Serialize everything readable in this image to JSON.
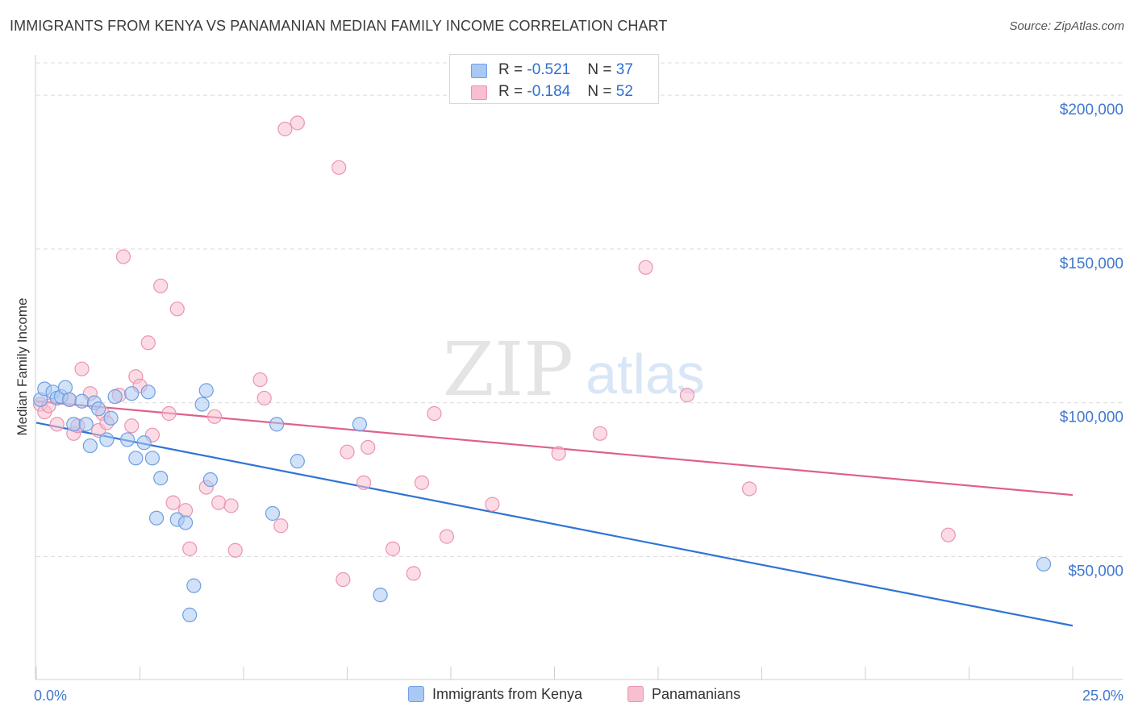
{
  "title": "IMMIGRANTS FROM KENYA VS PANAMANIAN MEDIAN FAMILY INCOME CORRELATION CHART",
  "source": "Source: ZipAtlas.com",
  "watermark": {
    "zip": "ZIP",
    "atlas": "atlas"
  },
  "legend": {
    "rows": [
      {
        "r_label": "R = ",
        "r_value": "-0.521",
        "n_label": "N = ",
        "n_value": "37"
      },
      {
        "r_label": "R = ",
        "r_value": "-0.184",
        "n_label": "N = ",
        "n_value": "52"
      }
    ]
  },
  "bottom_legend": {
    "series1": "Immigrants from Kenya",
    "series2": "Panamanians"
  },
  "chart_data": {
    "type": "scatter",
    "xlabel": "",
    "ylabel": "Median Family Income",
    "xlim": [
      0,
      25
    ],
    "ylim": [
      10000,
      210000
    ],
    "x_tick_labels": {
      "left": "0.0%",
      "right": "25.0%"
    },
    "y_ticks": [
      50000,
      100000,
      150000,
      200000
    ],
    "y_tick_labels": [
      "$50,000",
      "$100,000",
      "$150,000",
      "$200,000"
    ],
    "colors": {
      "kenya_fill": "#a9c8f3",
      "kenya_stroke": "#6f9fe0",
      "kenya_line": "#2f74d4",
      "pan_fill": "#f7bfd0",
      "pan_stroke": "#ec93b0",
      "pan_line": "#e05f8c",
      "axis_text": "#3f78d0",
      "grid": "#dcdcdc"
    },
    "series": [
      {
        "name": "Immigrants from Kenya",
        "trend": {
          "x": [
            0,
            25
          ],
          "y": [
            93500,
            27500
          ]
        },
        "points": [
          [
            0.1,
            101000
          ],
          [
            0.2,
            104500
          ],
          [
            0.4,
            103500
          ],
          [
            0.5,
            101500
          ],
          [
            0.6,
            102000
          ],
          [
            0.7,
            105000
          ],
          [
            0.8,
            101000
          ],
          [
            0.9,
            93000
          ],
          [
            1.1,
            100500
          ],
          [
            1.2,
            93000
          ],
          [
            1.3,
            86000
          ],
          [
            1.4,
            100000
          ],
          [
            1.5,
            98000
          ],
          [
            1.7,
            88000
          ],
          [
            1.8,
            95000
          ],
          [
            1.9,
            102000
          ],
          [
            2.2,
            88000
          ],
          [
            2.3,
            103000
          ],
          [
            2.4,
            82000
          ],
          [
            2.6,
            87000
          ],
          [
            2.7,
            103500
          ],
          [
            2.8,
            82000
          ],
          [
            2.9,
            62500
          ],
          [
            3.0,
            75500
          ],
          [
            3.4,
            62000
          ],
          [
            3.6,
            61000
          ],
          [
            3.7,
            31000
          ],
          [
            3.8,
            40500
          ],
          [
            4.0,
            99500
          ],
          [
            4.1,
            104000
          ],
          [
            4.2,
            75000
          ],
          [
            5.7,
            64000
          ],
          [
            5.8,
            93000
          ],
          [
            6.3,
            81000
          ],
          [
            7.8,
            93000
          ],
          [
            8.3,
            37500
          ],
          [
            24.3,
            47500
          ]
        ]
      },
      {
        "name": "Panamanians",
        "trend": {
          "x": [
            0,
            25
          ],
          "y": [
            100500,
            70000
          ]
        },
        "points": [
          [
            0.1,
            99500
          ],
          [
            0.2,
            97000
          ],
          [
            0.3,
            99000
          ],
          [
            0.5,
            93000
          ],
          [
            0.8,
            101000
          ],
          [
            0.9,
            90000
          ],
          [
            1.0,
            92500
          ],
          [
            1.1,
            111000
          ],
          [
            1.3,
            103000
          ],
          [
            1.5,
            91000
          ],
          [
            1.6,
            96500
          ],
          [
            1.7,
            93500
          ],
          [
            2.0,
            102500
          ],
          [
            2.1,
            147500
          ],
          [
            2.3,
            92500
          ],
          [
            2.4,
            108500
          ],
          [
            2.5,
            105500
          ],
          [
            2.7,
            119500
          ],
          [
            2.8,
            89500
          ],
          [
            3.0,
            138000
          ],
          [
            3.2,
            96500
          ],
          [
            3.3,
            67500
          ],
          [
            3.4,
            130500
          ],
          [
            3.6,
            65000
          ],
          [
            3.7,
            52500
          ],
          [
            4.1,
            72500
          ],
          [
            4.3,
            95500
          ],
          [
            4.4,
            67500
          ],
          [
            4.7,
            66500
          ],
          [
            4.8,
            52000
          ],
          [
            5.4,
            107500
          ],
          [
            5.5,
            101500
          ],
          [
            5.9,
            60000
          ],
          [
            6.0,
            189000
          ],
          [
            6.3,
            191000
          ],
          [
            7.3,
            176500
          ],
          [
            7.4,
            42500
          ],
          [
            7.5,
            84000
          ],
          [
            7.9,
            74000
          ],
          [
            8.0,
            85500
          ],
          [
            8.6,
            52500
          ],
          [
            9.1,
            44500
          ],
          [
            9.3,
            74000
          ],
          [
            9.6,
            96500
          ],
          [
            9.9,
            56500
          ],
          [
            11.0,
            67000
          ],
          [
            12.6,
            83500
          ],
          [
            13.6,
            90000
          ],
          [
            14.7,
            144000
          ],
          [
            15.7,
            102500
          ],
          [
            17.2,
            72000
          ],
          [
            22.0,
            57000
          ]
        ]
      }
    ]
  }
}
